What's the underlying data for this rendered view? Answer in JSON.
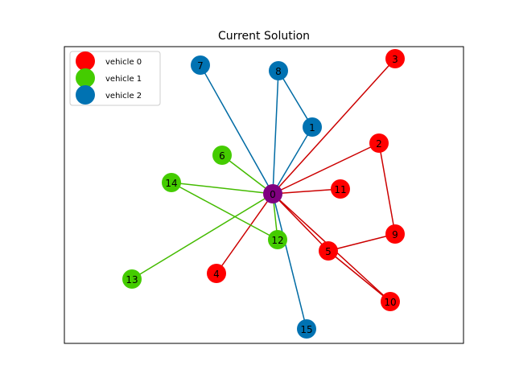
{
  "title": "Current Solution",
  "colors": {
    "depot": "#800080",
    "edge_vehicle_0": "#cc0000",
    "edge_vehicle_1": "#44bb00",
    "edge_vehicle_2": "#006ba4"
  },
  "legend": [
    {
      "label": "vehicle 0",
      "color": "#ff0000"
    },
    {
      "label": "vehicle 1",
      "color": "#44cc00"
    },
    {
      "label": "vehicle 2",
      "color": "#0072b2"
    }
  ],
  "nodes": [
    {
      "id": "0",
      "vehicle": "depot"
    },
    {
      "id": "1",
      "vehicle": 2
    },
    {
      "id": "2",
      "vehicle": 0
    },
    {
      "id": "3",
      "vehicle": 0
    },
    {
      "id": "4",
      "vehicle": 0
    },
    {
      "id": "5",
      "vehicle": 0
    },
    {
      "id": "6",
      "vehicle": 1
    },
    {
      "id": "7",
      "vehicle": 2
    },
    {
      "id": "8",
      "vehicle": 2
    },
    {
      "id": "9",
      "vehicle": 0
    },
    {
      "id": "10",
      "vehicle": 0
    },
    {
      "id": "11",
      "vehicle": 0
    },
    {
      "id": "12",
      "vehicle": 1
    },
    {
      "id": "13",
      "vehicle": 1
    },
    {
      "id": "14",
      "vehicle": 1
    },
    {
      "id": "15",
      "vehicle": 2
    }
  ],
  "edges": [
    {
      "from": "0",
      "to": "3",
      "vehicle": 0
    },
    {
      "from": "0",
      "to": "2",
      "vehicle": 0
    },
    {
      "from": "2",
      "to": "9",
      "vehicle": 0
    },
    {
      "from": "9",
      "to": "5",
      "vehicle": 0
    },
    {
      "from": "0",
      "to": "5",
      "vehicle": 0
    },
    {
      "from": "5",
      "to": "10",
      "vehicle": 0
    },
    {
      "from": "0",
      "to": "11",
      "vehicle": 0
    },
    {
      "from": "0",
      "to": "4",
      "vehicle": 0
    },
    {
      "from": "0",
      "to": "10",
      "vehicle": 0
    },
    {
      "from": "0",
      "to": "6",
      "vehicle": 1
    },
    {
      "from": "0",
      "to": "14",
      "vehicle": 1
    },
    {
      "from": "14",
      "to": "12",
      "vehicle": 1
    },
    {
      "from": "0",
      "to": "12",
      "vehicle": 1
    },
    {
      "from": "0",
      "to": "13",
      "vehicle": 1
    },
    {
      "from": "0",
      "to": "7",
      "vehicle": 2
    },
    {
      "from": "0",
      "to": "8",
      "vehicle": 2
    },
    {
      "from": "8",
      "to": "1",
      "vehicle": 2
    },
    {
      "from": "0",
      "to": "1",
      "vehicle": 2
    },
    {
      "from": "0",
      "to": "15",
      "vehicle": 2
    }
  ]
}
